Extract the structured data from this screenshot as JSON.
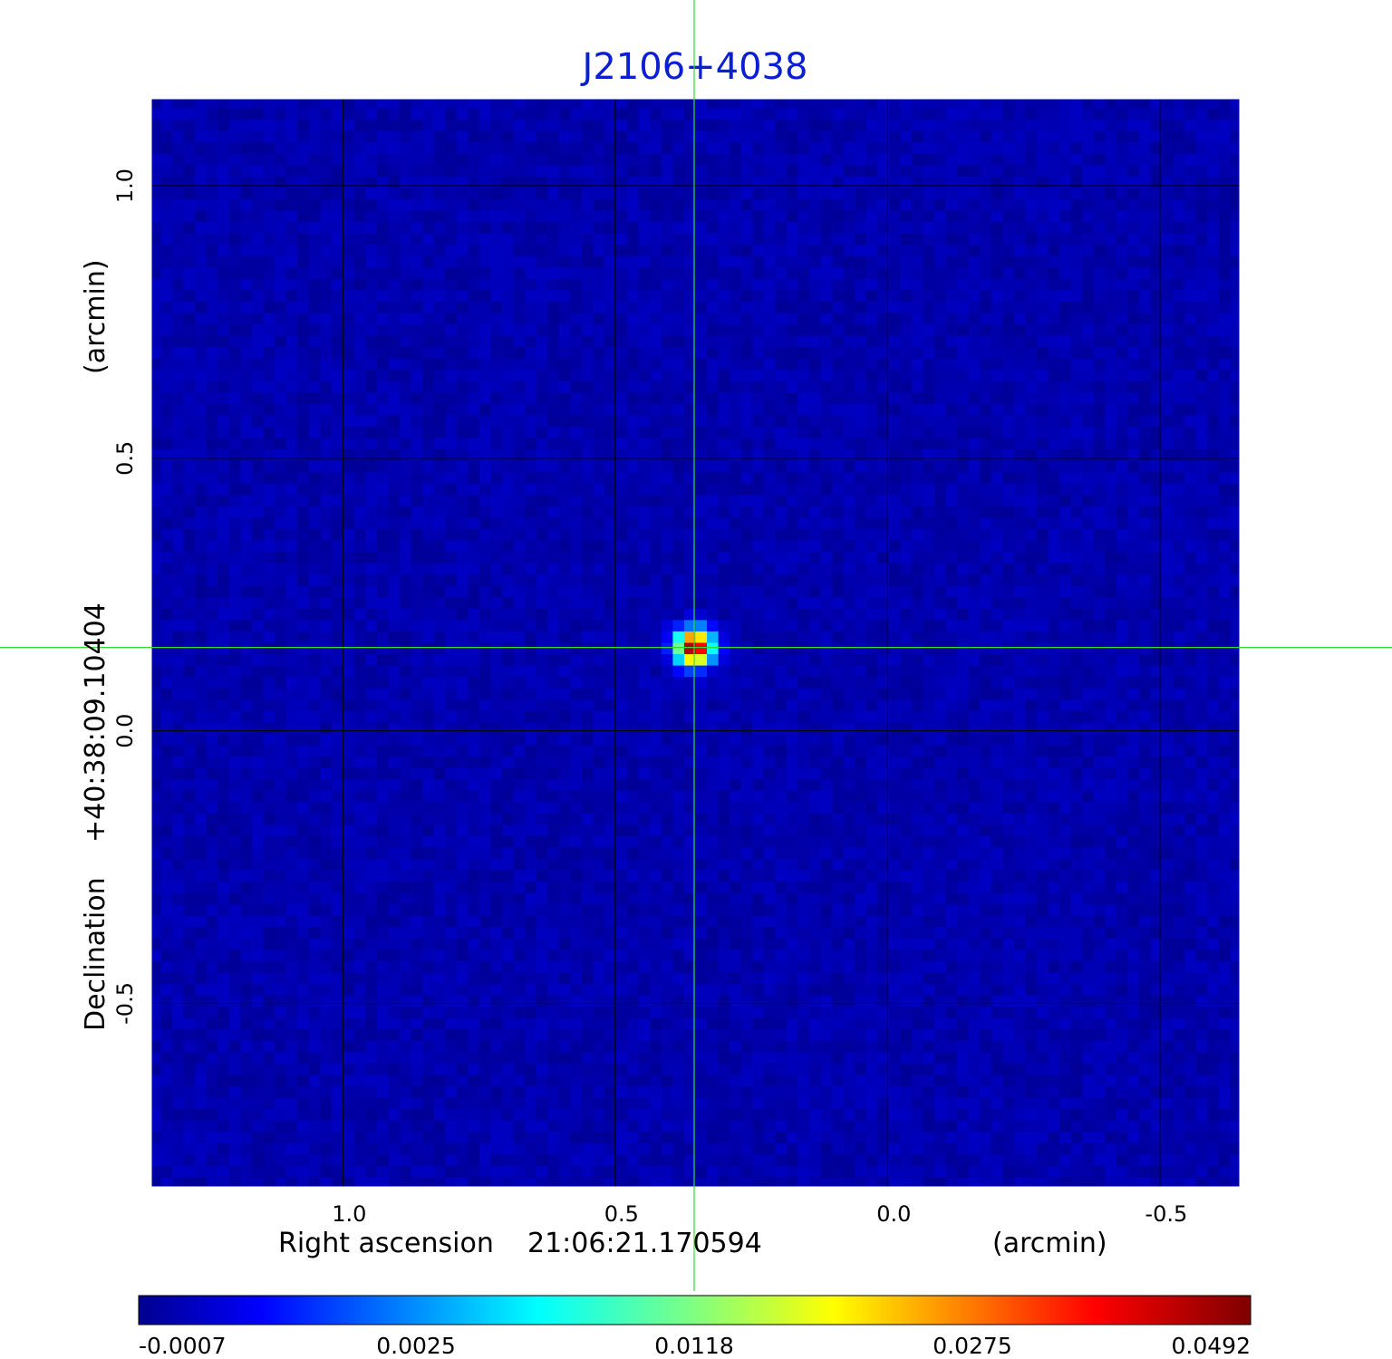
{
  "chart_data": {
    "type": "heatmap",
    "title": "J2106+4038",
    "colormap": "jet",
    "x_axis": {
      "label_prefix": "Right ascension",
      "label_value": "21:06:21.170594",
      "unit": "(arcmin)",
      "range": [
        1.355,
        -0.65
      ],
      "ticks": [
        1.0,
        0.5,
        0.0,
        -0.5
      ],
      "tick_labels": [
        "1.0",
        "0.5",
        "0.0",
        "-0.5"
      ]
    },
    "y_axis": {
      "label_prefix": "Declination",
      "label_value": "+40:38:09.10404",
      "unit": "(arcmin)",
      "range": [
        -0.84,
        1.163
      ],
      "ticks": [
        1.0,
        0.5,
        0.0,
        -0.5
      ],
      "tick_labels": [
        "1.0",
        "0.5",
        "0.0",
        "-0.5"
      ]
    },
    "grid": true,
    "crosshair": {
      "x": 0.355,
      "y": 0.153,
      "color": "#33dd33"
    },
    "source": {
      "x": 0.355,
      "y": 0.153,
      "peak": 0.0492
    },
    "colorbar": {
      "orientation": "horizontal",
      "range": [
        -0.0007,
        0.0492
      ],
      "tick_values": [
        -0.0007,
        0.0025,
        0.0118,
        0.0275,
        0.0492
      ],
      "tick_labels": [
        "-0.0007",
        "0.0025",
        "0.0118",
        "0.0275",
        "0.0492"
      ]
    },
    "background_level": 0.0015
  }
}
